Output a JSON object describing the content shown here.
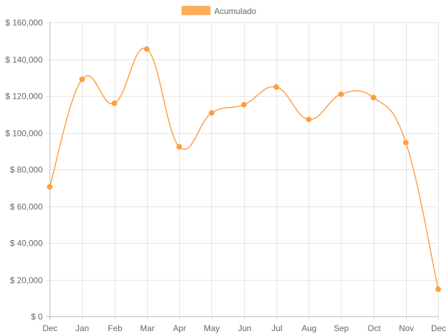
{
  "chart_data": {
    "type": "line",
    "title": "",
    "xlabel": "",
    "ylabel": "",
    "categories": [
      "Dec",
      "Jan",
      "Feb",
      "Mar",
      "Apr",
      "May",
      "Jun",
      "Jul",
      "Aug",
      "Sep",
      "Oct",
      "Nov",
      "Dec"
    ],
    "series": [
      {
        "name": "Acumulado",
        "color": "#ff9f40",
        "values": [
          70500,
          129000,
          116000,
          145500,
          92300,
          110700,
          115200,
          124800,
          107200,
          120900,
          119100,
          94600,
          14800
        ]
      }
    ],
    "ylim": [
      0,
      160000
    ],
    "y_ticks": [
      0,
      20000,
      40000,
      60000,
      80000,
      100000,
      120000,
      140000,
      160000
    ],
    "y_tick_labels": [
      "$ 0",
      "$ 20,000",
      "$ 40,000",
      "$ 60,000",
      "$ 80,000",
      "$ 100,000",
      "$ 120,000",
      "$ 140,000",
      "$ 160,000"
    ],
    "grid": true,
    "legend_position": "top-center"
  }
}
